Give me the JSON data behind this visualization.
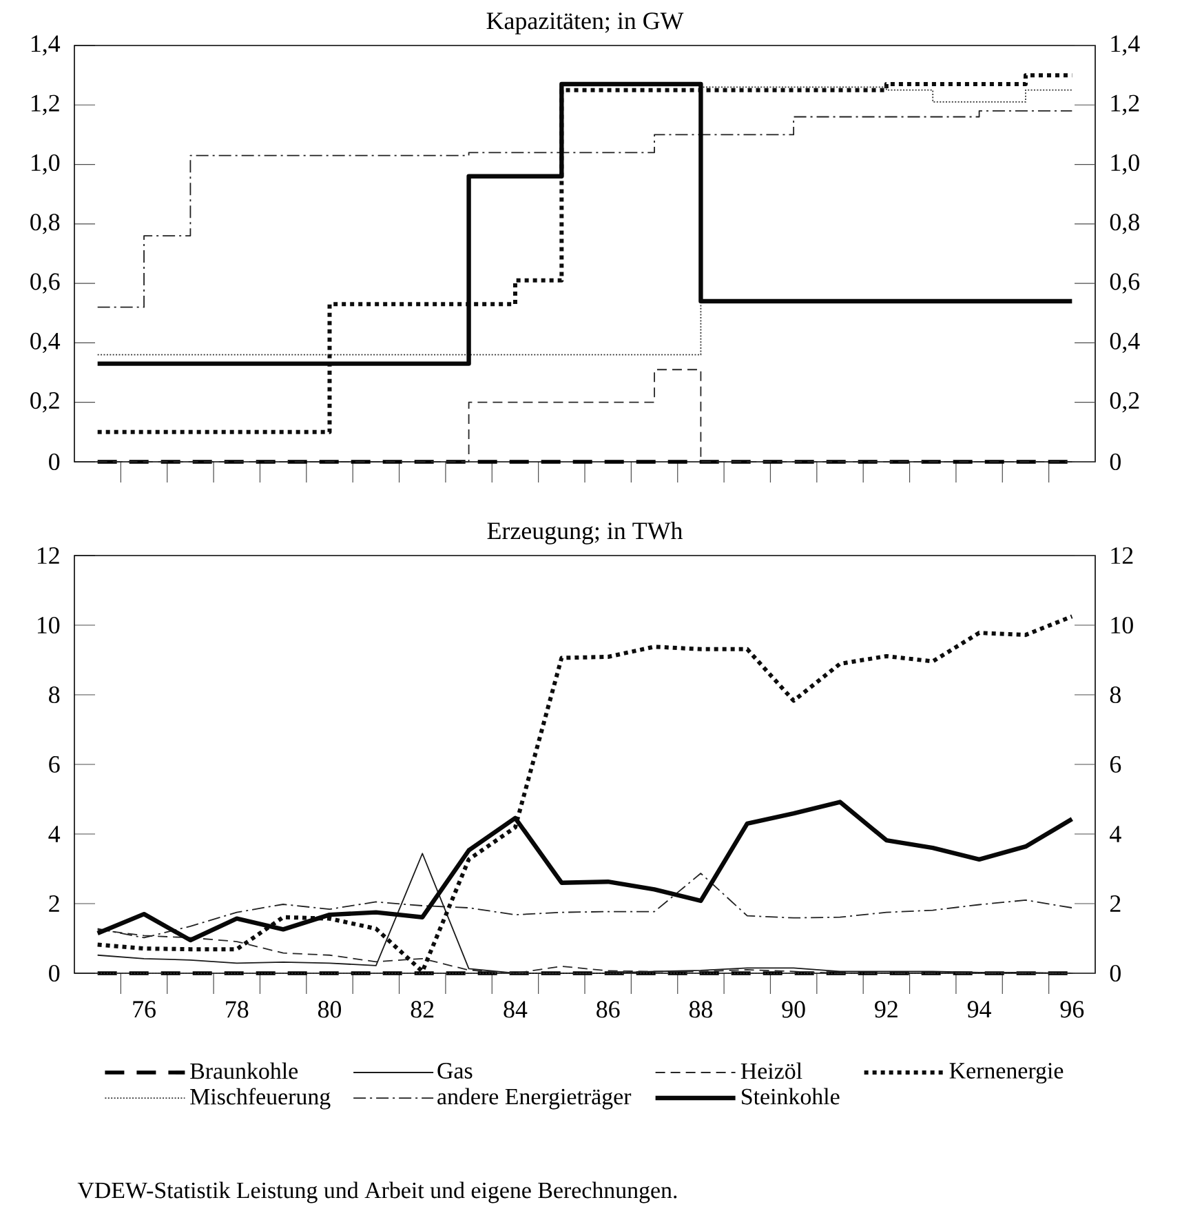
{
  "chart_data": [
    {
      "type": "step",
      "title": "Kapazitäten; in GW",
      "x": [
        75,
        76,
        77,
        78,
        79,
        80,
        81,
        82,
        83,
        84,
        85,
        86,
        87,
        88,
        89,
        90,
        91,
        92,
        93,
        94,
        95,
        96
      ],
      "xlim": [
        74.5,
        96.5
      ],
      "xticks": [
        {
          "value": 75.5,
          "label": null
        },
        {
          "value": 76.5,
          "label": null
        },
        {
          "value": 77.5,
          "label": null
        },
        {
          "value": 78.5,
          "label": null
        },
        {
          "value": 79.5,
          "label": null
        },
        {
          "value": 80.5,
          "label": null
        },
        {
          "value": 81.5,
          "label": null
        },
        {
          "value": 82.5,
          "label": null
        },
        {
          "value": 83.5,
          "label": null
        },
        {
          "value": 84.5,
          "label": null
        },
        {
          "value": 85.5,
          "label": null
        },
        {
          "value": 86.5,
          "label": null
        },
        {
          "value": 87.5,
          "label": null
        },
        {
          "value": 88.5,
          "label": null
        },
        {
          "value": 89.5,
          "label": null
        },
        {
          "value": 90.5,
          "label": null
        },
        {
          "value": 91.5,
          "label": null
        },
        {
          "value": 92.5,
          "label": null
        },
        {
          "value": 93.5,
          "label": null
        },
        {
          "value": 94.5,
          "label": null
        },
        {
          "value": 95.5,
          "label": null
        }
      ],
      "ylim": [
        0,
        1.4
      ],
      "yticks": [
        0,
        {
          "value": 0.2,
          "label": "0,2"
        },
        {
          "value": 0.4,
          "label": "0,4"
        },
        {
          "value": 0.6,
          "label": "0,6"
        },
        {
          "value": 0.8,
          "label": "0,8"
        },
        {
          "value": 1.0,
          "label": "1,0"
        },
        {
          "value": 1.2,
          "label": "1,2"
        },
        {
          "value": 1.4,
          "label": "1,4"
        }
      ],
      "y2lim": [
        0,
        1.4
      ],
      "y2ticks": [
        0,
        {
          "value": 0.2,
          "label": "0,2"
        },
        {
          "value": 0.4,
          "label": "0,4"
        },
        {
          "value": 0.6,
          "label": "0,6"
        },
        {
          "value": 0.8,
          "label": "0,8"
        },
        {
          "value": 1.0,
          "label": "1,0"
        },
        {
          "value": 1.2,
          "label": "1,2"
        },
        {
          "value": 1.4,
          "label": "1,4"
        }
      ],
      "tick_labels": "y",
      "series": [
        {
          "color": "#000000",
          "line_style": "dashed",
          "values": [
            0,
            0,
            0,
            0,
            0,
            0,
            0,
            0,
            0,
            0,
            0,
            0,
            0,
            0,
            0,
            0,
            0,
            0,
            0,
            0,
            0,
            0
          ]
        },
        {
          "color": "#262626",
          "line_style": "dashed",
          "values": [
            0,
            0,
            0,
            0,
            0,
            0,
            0,
            0,
            0.2,
            0.2,
            0.2,
            0.2,
            0.31,
            0,
            0,
            0,
            0,
            0,
            0,
            0,
            0,
            0
          ]
        },
        {
          "color": "#0d0d0d",
          "line_style": "dotted",
          "values": [
            0.1,
            0.1,
            0.1,
            0.1,
            0.1,
            0.53,
            0.53,
            0.53,
            0.53,
            0.61,
            1.25,
            1.25,
            1.25,
            1.25,
            1.25,
            1.25,
            1.25,
            1.27,
            1.27,
            1.27,
            1.3,
            1.3
          ]
        },
        {
          "color": "#333333",
          "line_style": "dotted",
          "values": [
            0.36,
            0.36,
            0.36,
            0.36,
            0.36,
            0.36,
            0.36,
            0.36,
            0.36,
            0.36,
            0.36,
            0.36,
            0.36,
            1.26,
            1.26,
            1.26,
            1.26,
            1.25,
            1.21,
            1.21,
            1.25,
            1.25
          ]
        },
        {
          "color": "#202020",
          "line_style": "dashdot",
          "values": [
            0.52,
            0.76,
            1.03,
            1.03,
            1.03,
            1.03,
            1.03,
            1.03,
            1.04,
            1.04,
            1.04,
            1.04,
            1.1,
            1.1,
            1.1,
            1.16,
            1.16,
            1.16,
            1.16,
            1.18,
            1.18,
            1.18
          ]
        },
        {
          "color": "#080808",
          "line_style": "solid",
          "values": [
            0.33,
            0.33,
            0.33,
            0.33,
            0.33,
            0.33,
            0.33,
            0.33,
            0.96,
            0.96,
            1.27,
            1.27,
            1.27,
            0.54,
            0.54,
            0.54,
            0.54,
            0.54,
            0.54,
            0.54,
            0.54,
            0.54
          ]
        }
      ]
    },
    {
      "type": "line",
      "title": "Erzeugung; in TWh",
      "x": [
        75,
        76,
        77,
        78,
        79,
        80,
        81,
        82,
        83,
        84,
        85,
        86,
        87,
        88,
        89,
        90,
        91,
        92,
        93,
        94,
        95,
        96
      ],
      "xlim": [
        74.5,
        96.5
      ],
      "xticks": [
        {
          "value": 75.5,
          "label": null
        },
        {
          "value": 76,
          "label": "76"
        },
        {
          "value": 76.5,
          "label": null
        },
        {
          "value": 77.5,
          "label": null
        },
        {
          "value": 78,
          "label": "78"
        },
        {
          "value": 78.5,
          "label": null
        },
        {
          "value": 79.5,
          "label": null
        },
        {
          "value": 80,
          "label": "80"
        },
        {
          "value": 80.5,
          "label": null
        },
        {
          "value": 81.5,
          "label": null
        },
        {
          "value": 82,
          "label": "82"
        },
        {
          "value": 82.5,
          "label": null
        },
        {
          "value": 83.5,
          "label": null
        },
        {
          "value": 84,
          "label": "84"
        },
        {
          "value": 84.5,
          "label": null
        },
        {
          "value": 85.5,
          "label": null
        },
        {
          "value": 86,
          "label": "86"
        },
        {
          "value": 86.5,
          "label": null
        },
        {
          "value": 87.5,
          "label": null
        },
        {
          "value": 88,
          "label": "88"
        },
        {
          "value": 88.5,
          "label": null
        },
        {
          "value": 89.5,
          "label": null
        },
        {
          "value": 90,
          "label": "90"
        },
        {
          "value": 90.5,
          "label": null
        },
        {
          "value": 91.5,
          "label": null
        },
        {
          "value": 92,
          "label": "92"
        },
        {
          "value": 92.5,
          "label": null
        },
        {
          "value": 93.5,
          "label": null
        },
        {
          "value": 94,
          "label": "94"
        },
        {
          "value": 94.5,
          "label": null
        },
        {
          "value": 95.5,
          "label": null
        },
        {
          "value": 96,
          "label": "96"
        }
      ],
      "ylim": [
        0,
        12
      ],
      "yticks": [
        0,
        2,
        4,
        6,
        8,
        10,
        12
      ],
      "y2lim": [
        0,
        12
      ],
      "y2ticks": [
        0,
        2,
        4,
        6,
        8,
        10,
        12
      ],
      "legend": "bottom",
      "series": [
        {
          "name": "Braunkohle",
          "color": "#000000",
          "line_style": "dashed",
          "values": [
            0,
            0,
            0,
            0,
            0,
            0,
            0,
            0,
            0,
            0,
            0,
            0,
            0,
            0,
            0,
            0,
            0,
            0,
            0,
            0,
            0,
            0
          ]
        },
        {
          "name": "Gas",
          "color": "#1a1a1a",
          "line_style": "solid",
          "values": [
            0.52,
            0.42,
            0.38,
            0.29,
            0.32,
            0.29,
            0.22,
            3.44,
            0.13,
            0,
            0,
            0,
            0.05,
            0.08,
            0.15,
            0.15,
            0.05,
            0.05,
            0.05,
            0.02,
            0.02,
            0
          ]
        },
        {
          "name": "Heizöl",
          "color": "#262626",
          "line_style": "dashed",
          "values": [
            1.25,
            1.08,
            1.02,
            0.91,
            0.58,
            0.52,
            0.33,
            0.42,
            0.09,
            0,
            0.2,
            0.07,
            0.05,
            0.05,
            0.1,
            0.05,
            0,
            0,
            0,
            0,
            0,
            0
          ]
        },
        {
          "name": "Kernenergie",
          "color": "#0d0d0d",
          "line_style": "dotted",
          "values": [
            0.82,
            0.71,
            0.69,
            0.69,
            1.61,
            1.57,
            1.28,
            0.05,
            3.27,
            4.19,
            9.06,
            9.09,
            9.38,
            9.31,
            9.31,
            7.83,
            8.89,
            9.11,
            8.96,
            9.78,
            9.72,
            10.25
          ]
        },
        {
          "name": "Mischfeuerung",
          "color": "#333333",
          "line_style": "dotted",
          "values": [
            0,
            0,
            0,
            0,
            0,
            0,
            0,
            0,
            0,
            0,
            0,
            0,
            0,
            0,
            0,
            0,
            0,
            0,
            0,
            0,
            0,
            0
          ]
        },
        {
          "name": "andere Energieträger",
          "color": "#202020",
          "line_style": "dashdot",
          "values": [
            1.28,
            1.02,
            1.35,
            1.75,
            1.98,
            1.84,
            2.05,
            1.94,
            1.88,
            1.68,
            1.75,
            1.77,
            1.77,
            2.87,
            1.65,
            1.59,
            1.61,
            1.75,
            1.81,
            1.97,
            2.1,
            1.88
          ]
        },
        {
          "name": "Steinkohle",
          "color": "#080808",
          "line_style": "solid",
          "values": [
            1.15,
            1.7,
            0.95,
            1.57,
            1.26,
            1.68,
            1.75,
            1.61,
            3.53,
            4.46,
            2.6,
            2.63,
            2.41,
            2.08,
            4.3,
            4.59,
            4.92,
            3.82,
            3.6,
            3.27,
            3.64,
            4.43
          ]
        }
      ],
      "annotations": [
        "VDEW-Statistik Leistung und Arbeit und eigene Berechnungen."
      ]
    }
  ]
}
